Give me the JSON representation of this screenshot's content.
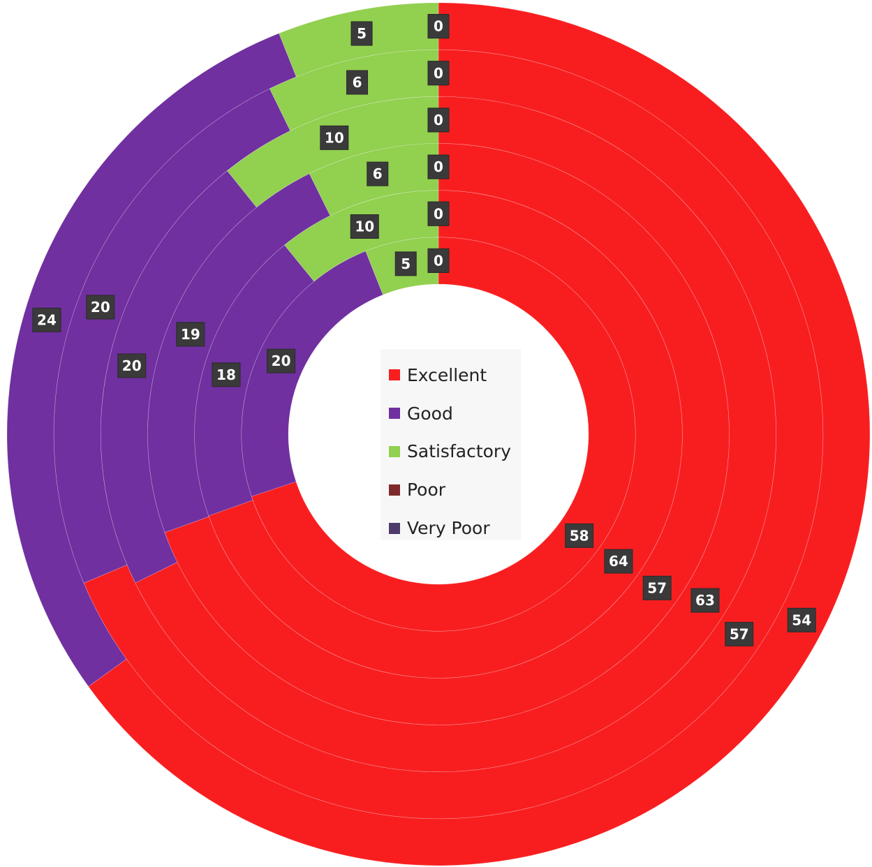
{
  "chart_data": {
    "type": "doughnut",
    "categories": [
      "Excellent",
      "Good",
      "Satisfactory",
      "Poor",
      "Very Poor"
    ],
    "colors": [
      "#f81e20",
      "#7030a0",
      "#92d050",
      "#7f2a2a",
      "#4f3b6b"
    ],
    "rings": [
      {
        "values": [
          54,
          24,
          5,
          0,
          0
        ]
      },
      {
        "values": [
          57,
          20,
          6,
          0,
          0
        ]
      },
      {
        "values": [
          63,
          20,
          10,
          0,
          0
        ]
      },
      {
        "values": [
          57,
          19,
          6,
          0,
          0
        ]
      },
      {
        "values": [
          64,
          18,
          10,
          0,
          0
        ]
      },
      {
        "values": [
          58,
          20,
          5,
          0,
          0
        ]
      }
    ],
    "data_labels": [
      [
        "54",
        "24",
        "5",
        "0",
        "0"
      ],
      [
        "57",
        "20",
        "6",
        "0",
        "0"
      ],
      [
        "63",
        "20",
        "10",
        "0",
        "0"
      ],
      [
        "57",
        "19",
        "6",
        "0",
        "0"
      ],
      [
        "64",
        "18",
        "10",
        "0",
        "0"
      ],
      [
        "58",
        "20",
        "5",
        "0",
        "0"
      ]
    ],
    "legend": {
      "position": "center",
      "items": [
        "Excellent",
        "Good",
        "Satisfactory",
        "Poor",
        "Very Poor"
      ]
    }
  }
}
